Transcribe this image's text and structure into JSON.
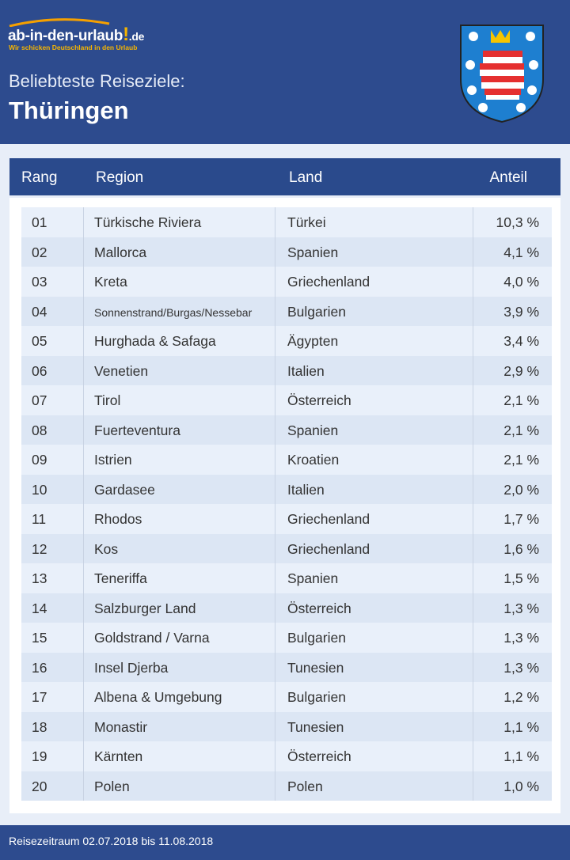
{
  "logo": {
    "name": "ab-in-den-urlaub",
    "mark": "!",
    "tld": ".de",
    "tagline": "Wir schicken Deutschland in den Urlaub"
  },
  "header": {
    "subtitle": "Beliebteste Reiseziele:",
    "title": "Thüringen"
  },
  "table": {
    "columns": [
      "Rang",
      "Region",
      "Land",
      "Anteil"
    ],
    "rows": [
      [
        "01",
        "Türkische Riviera",
        "Türkei",
        "10,3 %"
      ],
      [
        "02",
        "Mallorca",
        "Spanien",
        "4,1 %"
      ],
      [
        "03",
        "Kreta",
        "Griechenland",
        "4,0 %"
      ],
      [
        "04",
        "Sonnenstrand/Burgas/Nessebar",
        "Bulgarien",
        "3,9 %"
      ],
      [
        "05",
        "Hurghada & Safaga",
        "Ägypten",
        "3,4 %"
      ],
      [
        "06",
        "Venetien",
        "Italien",
        "2,9 %"
      ],
      [
        "07",
        "Tirol",
        "Österreich",
        "2,1 %"
      ],
      [
        "08",
        "Fuerteventura",
        "Spanien",
        "2,1 %"
      ],
      [
        "09",
        "Istrien",
        "Kroatien",
        "2,1 %"
      ],
      [
        "10",
        "Gardasee",
        "Italien",
        "2,0 %"
      ],
      [
        "11",
        "Rhodos",
        "Griechenland",
        "1,7 %"
      ],
      [
        "12",
        "Kos",
        "Griechenland",
        "1,6 %"
      ],
      [
        "13",
        "Teneriffa",
        "Spanien",
        "1,5 %"
      ],
      [
        "14",
        "Salzburger Land",
        "Österreich",
        "1,3 %"
      ],
      [
        "15",
        "Goldstrand / Varna",
        "Bulgarien",
        "1,3 %"
      ],
      [
        "16",
        "Insel Djerba",
        "Tunesien",
        "1,3 %"
      ],
      [
        "17",
        "Albena & Umgebung",
        "Bulgarien",
        "1,2 %"
      ],
      [
        "18",
        "Monastir",
        "Tunesien",
        "1,1 %"
      ],
      [
        "19",
        "Kärnten",
        "Österreich",
        "1,1 %"
      ],
      [
        "20",
        "Polen",
        "Polen",
        "1,0 %"
      ]
    ]
  },
  "footer": {
    "text": "Reisezeitraum 02.07.2018 bis 11.08.2018"
  }
}
